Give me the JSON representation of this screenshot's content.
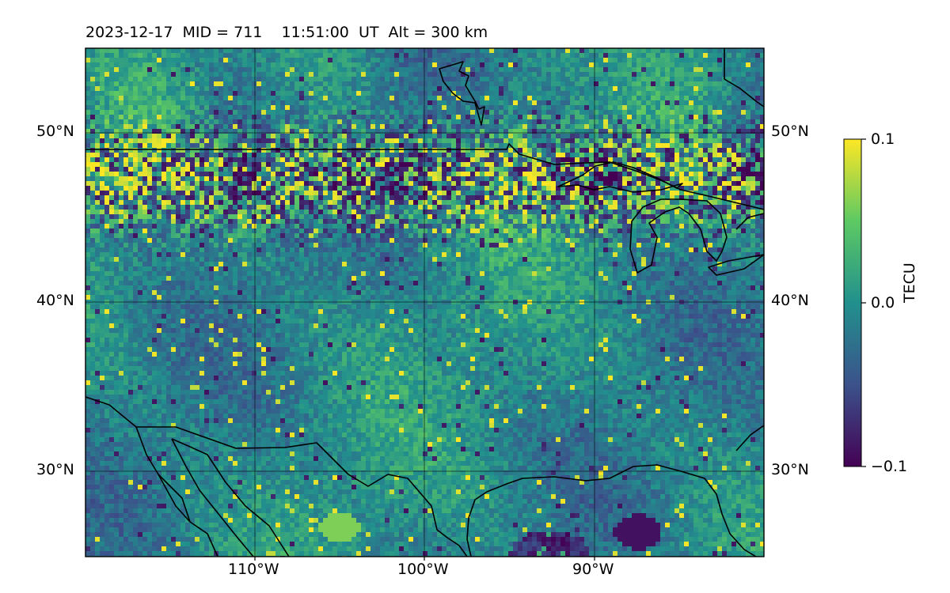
{
  "title": "2023-12-17  MID = 711    11:51:00  UT  Alt = 300 km",
  "map": {
    "lon_range": [
      -120,
      -80
    ],
    "lat_range": [
      25,
      55
    ],
    "lat_ticks": [
      {
        "value": 50,
        "label": "50°N"
      },
      {
        "value": 40,
        "label": "40°N"
      },
      {
        "value": 30,
        "label": "30°N"
      }
    ],
    "lon_ticks": [
      {
        "value": -110,
        "label": "110°W"
      },
      {
        "value": -100,
        "label": "100°W"
      },
      {
        "value": -90,
        "label": "90°W"
      }
    ],
    "gridlines": true,
    "coastlines": true,
    "borders": true
  },
  "colorbar": {
    "label": "TECU",
    "colormap": "viridis",
    "range": [
      -0.1,
      0.1
    ],
    "ticks": [
      {
        "value": 0.1,
        "label": "0.1"
      },
      {
        "value": 0.0,
        "label": "0.0"
      },
      {
        "value": -0.1,
        "label": "−0.1"
      }
    ],
    "colors": [
      "#440154",
      "#3b528b",
      "#21908d",
      "#5dc963",
      "#fde725"
    ]
  }
}
